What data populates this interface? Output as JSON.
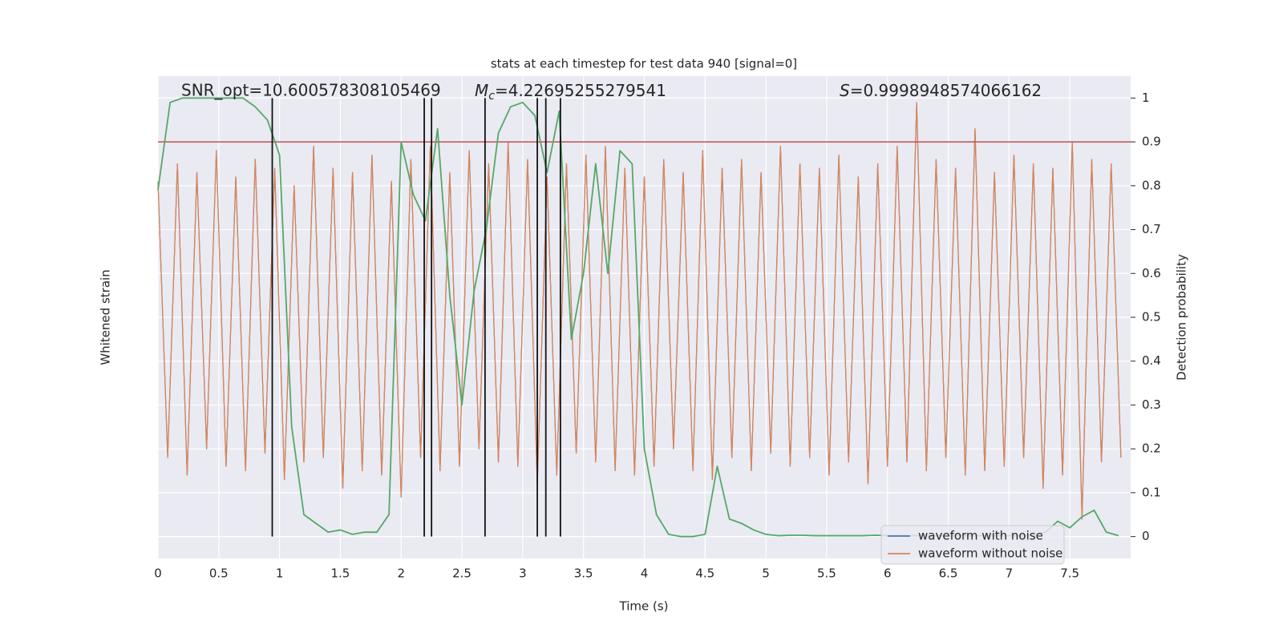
{
  "chart_data": {
    "type": "line",
    "title": "stats at each timestep for test data 940 [signal=0]",
    "xlabel": "Time (s)",
    "ylabel": "Whitened strain",
    "y2label": "Detection probability",
    "annotations": {
      "snr": "SNR_opt=10.600578308105469",
      "mc_symbol": "M",
      "mc_sub": "c",
      "mc_text": "=4.22695255279541",
      "s_symbol": "S",
      "s_text": "=0.9998948574066162"
    },
    "xlim": [
      0,
      8
    ],
    "xticks": [
      0,
      0.5,
      1,
      1.5,
      2,
      2.5,
      3,
      3.5,
      4,
      4.5,
      5,
      5.5,
      6,
      6.5,
      7,
      7.5
    ],
    "ylim": [
      -5.5,
      5.5
    ],
    "y2lim": [
      -0.05,
      1.05
    ],
    "y2ticks": [
      0,
      0.1,
      0.2,
      0.3,
      0.4,
      0.5,
      0.6,
      0.7,
      0.8,
      0.9,
      1
    ],
    "grid": true,
    "legend": "lower right",
    "threshold": {
      "value": 0.9,
      "color": "#c44e52"
    },
    "vlines": {
      "x": [
        0.94,
        2.19,
        2.25,
        2.69,
        3.12,
        3.19,
        3.31
      ],
      "color": "#111111"
    },
    "strain_x": [
      0,
      0.08,
      0.16,
      0.24,
      0.32,
      0.4,
      0.48,
      0.56,
      0.64,
      0.72,
      0.8,
      0.88,
      0.96,
      1.04,
      1.12,
      1.2,
      1.28,
      1.36,
      1.44,
      1.52,
      1.6,
      1.68,
      1.76,
      1.84,
      1.92,
      2,
      2.08,
      2.16,
      2.24,
      2.32,
      2.4,
      2.48,
      2.56,
      2.64,
      2.72,
      2.8,
      2.88,
      2.96,
      3.04,
      3.12,
      3.2,
      3.28,
      3.36,
      3.44,
      3.52,
      3.6,
      3.68,
      3.76,
      3.84,
      3.92,
      4,
      4.08,
      4.16,
      4.24,
      4.32,
      4.4,
      4.48,
      4.56,
      4.64,
      4.72,
      4.8,
      4.88,
      4.96,
      5.04,
      5.12,
      5.2,
      5.28,
      5.36,
      5.44,
      5.52,
      5.6,
      5.68,
      5.76,
      5.84,
      5.92,
      6,
      6.08,
      6.16,
      6.24,
      6.32,
      6.4,
      6.48,
      6.56,
      6.64,
      6.72,
      6.8,
      6.88,
      6.96,
      7.04,
      7.12,
      7.2,
      7.28,
      7.36,
      7.44,
      7.52,
      7.6,
      7.68,
      7.76,
      7.84,
      7.92
    ],
    "series": [
      {
        "name": "waveform with noise",
        "color": "#4c72b0",
        "axis": "y",
        "values": [
          3.1,
          -3.2,
          3.5,
          -3.6,
          3.3,
          -3.0,
          3.8,
          -3.4,
          3.2,
          -3.5,
          3.6,
          -3.1,
          3.4,
          -3.7,
          3.0,
          -3.3,
          3.9,
          -3.2,
          3.4,
          -3.9,
          3.3,
          -3.5,
          3.7,
          -3.6,
          3.1,
          -4.1,
          3.6,
          -3.2,
          3.9,
          -3.5,
          3.3,
          -3.4,
          3.8,
          -3.0,
          3.5,
          -3.3,
          4.0,
          -3.4,
          3.6,
          -3.8,
          3.2,
          -3.6,
          3.5,
          -3.1,
          3.7,
          -3.3,
          3.9,
          -3.5,
          3.4,
          -3.6,
          3.2,
          -3.4,
          3.6,
          -3.0,
          3.3,
          -3.5,
          3.8,
          -3.7,
          3.4,
          -3.2,
          3.6,
          -3.5,
          3.3,
          -3.1,
          3.9,
          -3.4,
          3.5,
          -3.2,
          3.4,
          -3.6,
          3.7,
          -3.3,
          3.2,
          -3.8,
          3.5,
          -3.4,
          3.9,
          -3.3,
          4.9,
          -3.5,
          3.6,
          -3.2,
          3.4,
          -3.6,
          4.3,
          -3.5,
          3.3,
          -3.4,
          3.7,
          -3.2,
          3.5,
          -3.9,
          3.4,
          -3.6,
          4.0,
          -4.6,
          3.6,
          -3.3,
          3.5,
          -3.2
        ]
      },
      {
        "name": "waveform without noise",
        "color": "#dd8452",
        "axis": "y",
        "values": [
          3.1,
          -3.2,
          3.5,
          -3.6,
          3.3,
          -3.0,
          3.8,
          -3.4,
          3.2,
          -3.5,
          3.6,
          -3.1,
          3.4,
          -3.7,
          3.0,
          -3.3,
          3.9,
          -3.2,
          3.4,
          -3.9,
          3.3,
          -3.5,
          3.7,
          -3.6,
          3.1,
          -4.1,
          3.6,
          -3.2,
          3.9,
          -3.5,
          3.3,
          -3.4,
          3.8,
          -3.0,
          3.5,
          -3.3,
          4.0,
          -3.4,
          3.6,
          -3.8,
          3.2,
          -3.6,
          3.5,
          -3.1,
          3.7,
          -3.3,
          3.9,
          -3.5,
          3.4,
          -3.6,
          3.2,
          -3.4,
          3.6,
          -3.0,
          3.3,
          -3.5,
          3.8,
          -3.7,
          3.4,
          -3.2,
          3.6,
          -3.5,
          3.3,
          -3.1,
          3.9,
          -3.4,
          3.5,
          -3.2,
          3.4,
          -3.6,
          3.7,
          -3.3,
          3.2,
          -3.8,
          3.5,
          -3.4,
          3.9,
          -3.3,
          4.9,
          -3.5,
          3.6,
          -3.2,
          3.4,
          -3.6,
          4.3,
          -3.5,
          3.3,
          -3.4,
          3.7,
          -3.2,
          3.5,
          -3.9,
          3.4,
          -3.6,
          4.0,
          -4.6,
          3.6,
          -3.3,
          3.5,
          -3.2
        ]
      }
    ],
    "prob_x": [
      0,
      0.1,
      0.2,
      0.3,
      0.4,
      0.5,
      0.6,
      0.7,
      0.8,
      0.9,
      1,
      1.1,
      1.2,
      1.3,
      1.4,
      1.5,
      1.6,
      1.7,
      1.8,
      1.9,
      2,
      2.1,
      2.2,
      2.3,
      2.4,
      2.5,
      2.6,
      2.7,
      2.8,
      2.9,
      3,
      3.1,
      3.2,
      3.3,
      3.4,
      3.5,
      3.6,
      3.7,
      3.8,
      3.9,
      4,
      4.1,
      4.2,
      4.3,
      4.4,
      4.5,
      4.6,
      4.7,
      4.8,
      4.9,
      5,
      5.1,
      5.2,
      5.3,
      5.4,
      5.5,
      5.6,
      5.7,
      5.8,
      5.9,
      6,
      6.1,
      6.2,
      6.3,
      6.4,
      6.5,
      6.6,
      6.7,
      6.8,
      6.9,
      7,
      7.1,
      7.2,
      7.3,
      7.4,
      7.5,
      7.6,
      7.7,
      7.8,
      7.9
    ],
    "prob": {
      "color": "#55a868",
      "axis": "y2",
      "values": [
        0.79,
        0.99,
        1,
        1,
        1,
        1,
        1,
        1,
        0.98,
        0.95,
        0.87,
        0.25,
        0.05,
        0.03,
        0.01,
        0.015,
        0.005,
        0.01,
        0.01,
        0.05,
        0.9,
        0.78,
        0.72,
        0.93,
        0.55,
        0.3,
        0.56,
        0.7,
        0.92,
        0.98,
        0.99,
        0.96,
        0.83,
        0.97,
        0.45,
        0.6,
        0.85,
        0.6,
        0.88,
        0.85,
        0.2,
        0.05,
        0.005,
        0,
        0,
        0.005,
        0.16,
        0.04,
        0.03,
        0.015,
        0.005,
        0.002,
        0.003,
        0.003,
        0.002,
        0.002,
        0.002,
        0.002,
        0.002,
        0.003,
        0.002,
        0.002,
        0.002,
        0.002,
        0.002,
        0.002,
        0.002,
        0.002,
        0.002,
        0.002,
        0.002,
        0.002,
        0.003,
        0.01,
        0.035,
        0.02,
        0.045,
        0.06,
        0.01,
        0.002
      ]
    }
  }
}
